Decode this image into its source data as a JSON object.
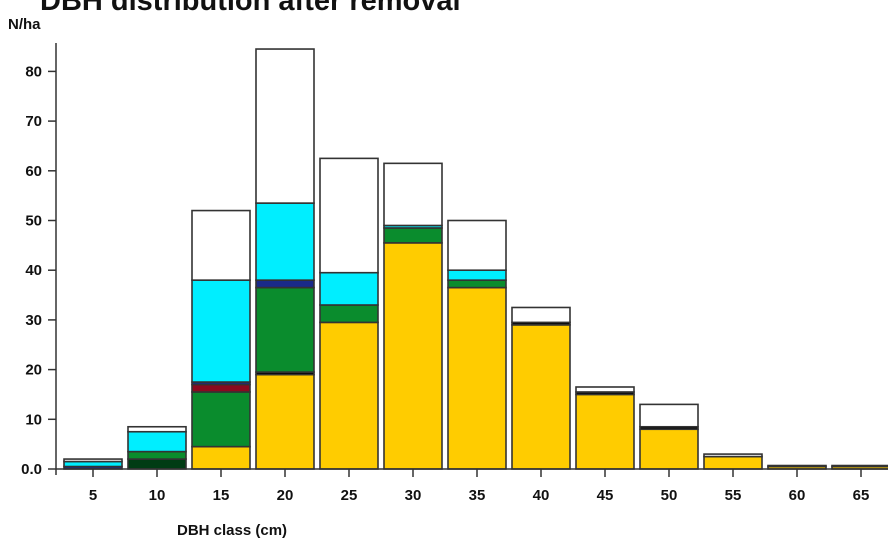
{
  "chart_data": {
    "type": "bar",
    "stacked": true,
    "title": "DBH distribution after removal",
    "ylabel": "N/ha",
    "xlabel": "DBH class (cm)",
    "categories": [
      "5",
      "10",
      "15",
      "20",
      "25",
      "30",
      "35",
      "40",
      "45",
      "50",
      "55",
      "60",
      "65"
    ],
    "yticks": [
      "0.0",
      "10",
      "20",
      "30",
      "40",
      "50",
      "60",
      "70",
      "80"
    ],
    "ylim": [
      0,
      85
    ],
    "series": [
      {
        "color": "#ffcc00",
        "values": [
          0,
          0,
          4.5,
          19,
          29.5,
          45.5,
          36.5,
          29,
          15,
          8,
          2.5,
          0.5,
          0.5
        ]
      },
      {
        "color": "#000000",
        "values": [
          0,
          0,
          0,
          0.5,
          0,
          0,
          0,
          0.5,
          0.5,
          0.5,
          0,
          0,
          0
        ]
      },
      {
        "color": "#003c14",
        "values": [
          0,
          2,
          0,
          0,
          0,
          0,
          0,
          0,
          0,
          0,
          0,
          0,
          0
        ]
      },
      {
        "color": "#0a8c2d",
        "values": [
          0,
          1.5,
          11,
          17,
          3.5,
          3,
          1.5,
          0,
          0,
          0,
          0,
          0,
          0
        ]
      },
      {
        "color": "#8b0a1e",
        "values": [
          0,
          0,
          1.5,
          0,
          0,
          0,
          0,
          0,
          0,
          0,
          0,
          0,
          0
        ]
      },
      {
        "color": "#1a2a8a",
        "values": [
          0.5,
          0,
          0.5,
          1.5,
          0,
          0,
          0,
          0,
          0,
          0,
          0,
          0,
          0
        ]
      },
      {
        "color": "#00eeff",
        "values": [
          1,
          4,
          20.5,
          15.5,
          6.5,
          0.5,
          2,
          0,
          0,
          0,
          0,
          0,
          0
        ]
      },
      {
        "color": "#ffffff",
        "values": [
          0.5,
          1,
          14,
          31,
          23,
          12.5,
          10,
          3,
          1,
          4.5,
          0.5,
          0.2,
          0.2
        ]
      }
    ]
  }
}
